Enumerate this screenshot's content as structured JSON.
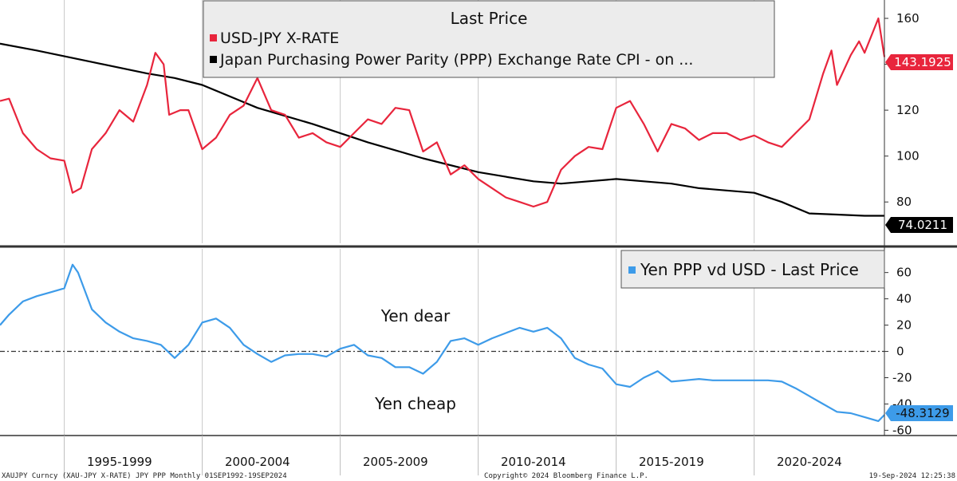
{
  "colors": {
    "usdjpy": "#e8253c",
    "ppp": "#000000",
    "spread": "#3d9be9",
    "grid": "#c8c8c8"
  },
  "footer": {
    "left": "XAUJPY Curncy (XAU-JPY X-RATE) JPY PPP  Monthly 01SEP1992-19SEP2024",
    "center": "Copyright© 2024 Bloomberg Finance L.P.",
    "right": "19-Sep-2024 12:25:38"
  },
  "chart_data": [
    {
      "type": "line",
      "title": "Last Price",
      "legend": [
        "USD-JPY X-RATE",
        "Japan Purchasing Power Parity (PPP) Exchange Rate CPI -  on ..."
      ],
      "xlim": [
        1992.67,
        2024.72
      ],
      "ylim": [
        62,
        168
      ],
      "yticks": [
        80,
        100,
        120,
        140,
        160
      ],
      "series": [
        {
          "name": "USD-JPY X-RATE",
          "last_value_label": "143.1925",
          "x": [
            1992.67,
            1993.0,
            1993.5,
            1994.0,
            1994.5,
            1995.0,
            1995.3,
            1995.6,
            1996.0,
            1996.5,
            1997.0,
            1997.5,
            1998.0,
            1998.3,
            1998.6,
            1998.8,
            1999.2,
            1999.5,
            2000.0,
            2000.5,
            2001.0,
            2001.5,
            2002.0,
            2002.5,
            2003.0,
            2003.5,
            2004.0,
            2004.5,
            2005.0,
            2005.5,
            2006.0,
            2006.5,
            2007.0,
            2007.5,
            2008.0,
            2008.5,
            2009.0,
            2009.5,
            2010.0,
            2010.5,
            2011.0,
            2011.5,
            2012.0,
            2012.5,
            2013.0,
            2013.5,
            2014.0,
            2014.5,
            2015.0,
            2015.5,
            2016.0,
            2016.5,
            2017.0,
            2017.5,
            2018.0,
            2018.5,
            2019.0,
            2019.5,
            2020.0,
            2020.5,
            2021.0,
            2021.5,
            2022.0,
            2022.5,
            2022.8,
            2023.0,
            2023.5,
            2023.8,
            2024.0,
            2024.5,
            2024.72
          ],
          "values": [
            124,
            125,
            110,
            103,
            99,
            98,
            84,
            86,
            103,
            110,
            120,
            115,
            131,
            145,
            140,
            118,
            120,
            120,
            103,
            108,
            118,
            122,
            134,
            120,
            118,
            108,
            110,
            106,
            104,
            110,
            116,
            114,
            121,
            120,
            102,
            106,
            92,
            96,
            90,
            86,
            82,
            80,
            78,
            80,
            94,
            100,
            104,
            103,
            121,
            124,
            114,
            102,
            114,
            112,
            107,
            110,
            110,
            107,
            109,
            106,
            104,
            110,
            116,
            136,
            146,
            131,
            144,
            150,
            145,
            160,
            143.2
          ]
        },
        {
          "name": "Japan Purchasing Power Parity (PPP) Exchange Rate CPI -  on ...",
          "last_value_label": "74.0211",
          "x": [
            1992.67,
            1994.0,
            1996.0,
            1998.0,
            1999.0,
            2000.0,
            2002.0,
            2004.0,
            2006.0,
            2008.0,
            2010.0,
            2011.0,
            2012.0,
            2013.0,
            2014.0,
            2015.0,
            2016.0,
            2017.0,
            2018.0,
            2019.0,
            2020.0,
            2021.0,
            2022.0,
            2023.0,
            2024.0,
            2024.72
          ],
          "values": [
            149,
            146,
            141,
            136,
            134,
            131,
            121,
            114,
            106,
            99,
            93,
            91,
            89,
            88,
            89,
            90,
            89,
            88,
            86,
            85,
            84,
            80,
            75,
            74.5,
            74,
            74.0
          ]
        }
      ]
    },
    {
      "type": "line",
      "legend": [
        "Yen PPP vd USD - Last Price"
      ],
      "xlim": [
        1992.67,
        2024.72
      ],
      "ylim": [
        -64,
        78
      ],
      "yticks": [
        -60,
        -40,
        -20,
        0,
        20,
        40,
        60
      ],
      "xticklabels": [
        "1995-1999",
        "2000-2004",
        "2005-2009",
        "2010-2014",
        "2015-2019",
        "2020-2024"
      ],
      "xtick_centers": [
        1997.0,
        2002.0,
        2007.0,
        2012.0,
        2017.0,
        2022.0
      ],
      "xtick_boundaries": [
        1995.0,
        2000.0,
        2005.0,
        2010.0,
        2015.0,
        2020.0
      ],
      "annotations": [
        "Yen dear",
        "Yen cheap"
      ],
      "series": [
        {
          "name": "Yen PPP vd USD - Last Price",
          "last_value_label": "-48.3129",
          "x": [
            1992.67,
            1993.0,
            1993.5,
            1994.0,
            1994.5,
            1995.0,
            1995.3,
            1995.5,
            1996.0,
            1996.5,
            1997.0,
            1997.5,
            1998.0,
            1998.5,
            1999.0,
            1999.5,
            2000.0,
            2000.5,
            2001.0,
            2001.5,
            2002.0,
            2002.5,
            2003.0,
            2003.5,
            2004.0,
            2004.5,
            2005.0,
            2005.5,
            2006.0,
            2006.5,
            2007.0,
            2007.5,
            2008.0,
            2008.5,
            2009.0,
            2009.5,
            2010.0,
            2010.5,
            2011.0,
            2011.5,
            2012.0,
            2012.5,
            2013.0,
            2013.5,
            2014.0,
            2014.5,
            2015.0,
            2015.5,
            2016.0,
            2016.5,
            2017.0,
            2017.5,
            2018.0,
            2018.5,
            2019.0,
            2019.5,
            2020.0,
            2020.5,
            2021.0,
            2021.5,
            2022.0,
            2022.5,
            2023.0,
            2023.5,
            2024.0,
            2024.5,
            2024.72
          ],
          "values": [
            20,
            28,
            38,
            42,
            45,
            48,
            66,
            60,
            32,
            22,
            15,
            10,
            8,
            5,
            -5,
            5,
            22,
            25,
            18,
            5,
            -2,
            -8,
            -3,
            -2,
            -2,
            -4,
            2,
            5,
            -3,
            -5,
            -12,
            -12,
            -17,
            -8,
            8,
            10,
            5,
            10,
            14,
            18,
            15,
            18,
            10,
            -5,
            -10,
            -13,
            -25,
            -27,
            -20,
            -15,
            -23,
            -22,
            -21,
            -22,
            -22,
            -22,
            -22,
            -22,
            -23,
            -28,
            -34,
            -40,
            -46,
            -47,
            -50,
            -53,
            -48.3
          ]
        }
      ]
    }
  ]
}
